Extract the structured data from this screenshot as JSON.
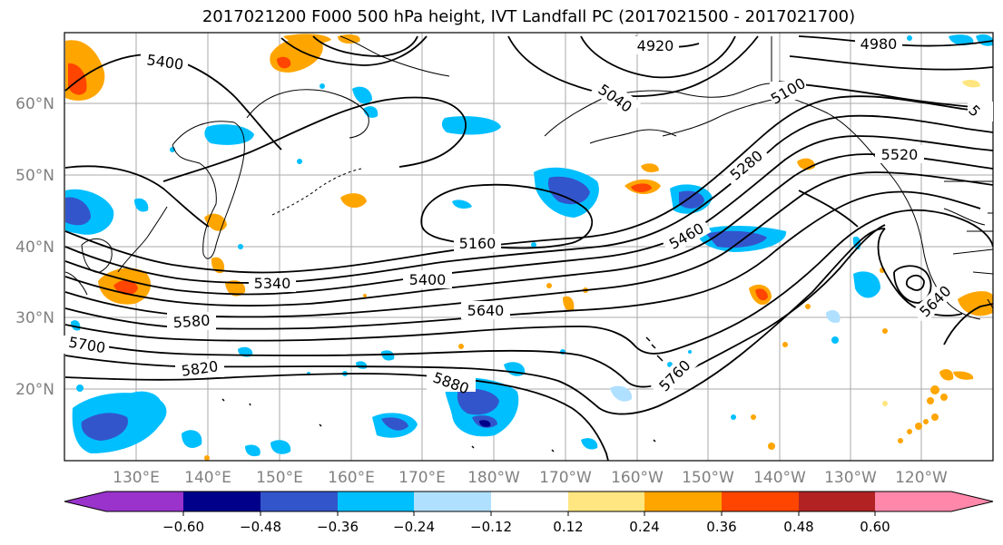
{
  "title": "2017021200 F000 500 hPa height, IVT Landfall PC (2017021500 - 2017021700)",
  "axes": {
    "lon_labels": [
      "130°E",
      "140°E",
      "150°E",
      "160°E",
      "170°E",
      "180°W",
      "170°W",
      "160°W",
      "150°W",
      "140°W",
      "130°W",
      "120°W"
    ],
    "lat_labels": [
      "60°N",
      "50°N",
      "40°N",
      "30°N",
      "20°N"
    ]
  },
  "colorbar": {
    "tick_labels": [
      "−0.60",
      "−0.48",
      "−0.36",
      "−0.24",
      "−0.12",
      "0.12",
      "0.24",
      "0.36",
      "0.48",
      "0.60"
    ],
    "colors": [
      "#9933cc",
      "#00008b",
      "#3355cc",
      "#00bfff",
      "#b0e0ff",
      "#ffffff",
      "#ffe680",
      "#ffa500",
      "#ff4500",
      "#b22222",
      "#ff88aa"
    ]
  },
  "contour_labels": [
    "5400",
    "4920",
    "4980",
    "5040",
    "5100",
    "5280",
    "5520",
    "5160",
    "5460",
    "5340",
    "5400",
    "5640",
    "5580",
    "5700",
    "5820",
    "5880",
    "5760",
    "5640",
    "5"
  ],
  "colors": {
    "positive_shading": "#ffa500",
    "negative_shading": "#00bfff",
    "grid": "#aaaaaa",
    "contour": "#000000",
    "tick_label": "#808080"
  }
}
